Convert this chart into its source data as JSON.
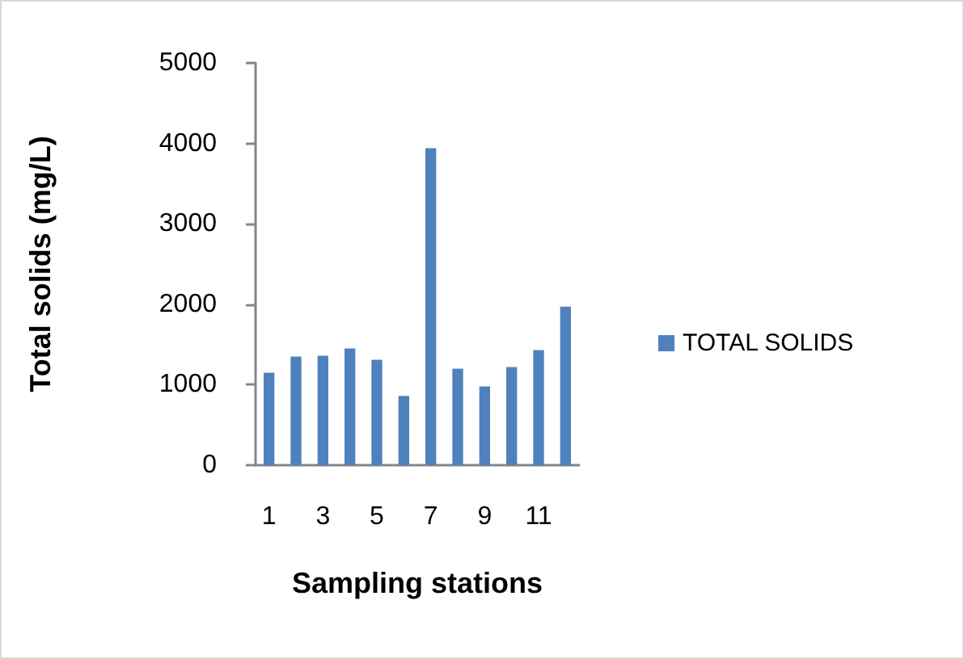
{
  "chart_data": {
    "type": "bar",
    "xlabel": "Sampling stations",
    "ylabel": "Total solids (mg/L)",
    "categories": [
      "1",
      null,
      "3",
      null,
      "5",
      null,
      "7",
      null,
      "9",
      null,
      "11",
      null
    ],
    "series": [
      {
        "name": "TOTAL SOLIDS",
        "color": "#4f81bd",
        "values": [
          1150,
          1350,
          1360,
          1450,
          1310,
          860,
          3940,
          1200,
          980,
          1220,
          1430,
          1970
        ]
      }
    ],
    "ylim": [
      0,
      5000
    ],
    "yticks": [
      0,
      1000,
      2000,
      3000,
      4000,
      5000
    ],
    "grid": false,
    "legend": "right"
  }
}
